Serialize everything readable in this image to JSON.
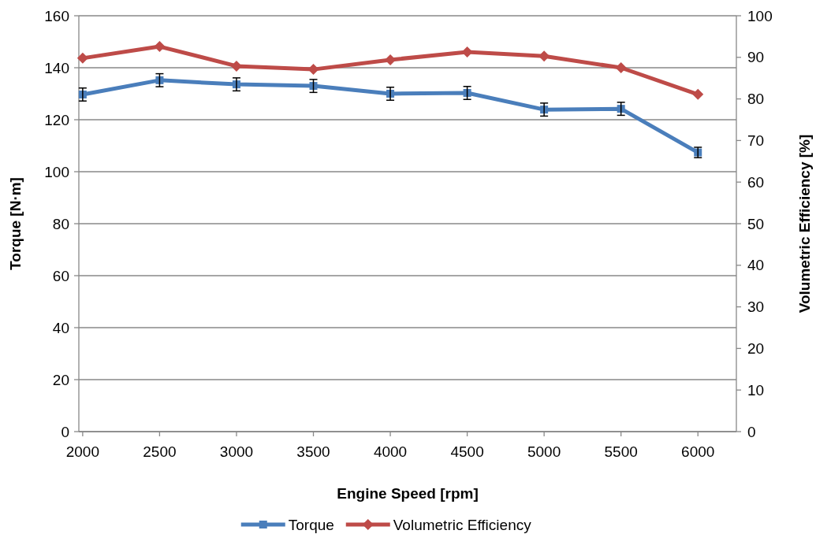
{
  "chart_data": {
    "type": "line",
    "xlabel": "Engine Speed [rpm]",
    "ylabel": "Torque [N·m]",
    "y2label": "Volumetric Efficiency [%]",
    "x": [
      2000,
      2500,
      3000,
      3500,
      4000,
      4500,
      5000,
      5500,
      6000
    ],
    "xlim": [
      1975,
      6250
    ],
    "xticks": [
      2000,
      2500,
      3000,
      3500,
      4000,
      4500,
      5000,
      5500,
      6000
    ],
    "ylim": [
      0,
      160
    ],
    "yticks": [
      0,
      20,
      40,
      60,
      80,
      100,
      120,
      140,
      160
    ],
    "y2lim": [
      0,
      100
    ],
    "y2ticks": [
      0,
      10,
      20,
      30,
      40,
      50,
      60,
      70,
      80,
      90,
      100
    ],
    "grid": "y",
    "legend": "bottom",
    "series": [
      {
        "name": "Torque",
        "color": "#4a7ebb",
        "marker": "square",
        "values": [
          129.7,
          135.2,
          133.6,
          133,
          130,
          130.3,
          123.9,
          124.2,
          107.4
        ],
        "errors": [
          2.5,
          2.5,
          2.5,
          2.5,
          2.5,
          2.5,
          2.5,
          2.5,
          2
        ]
      },
      {
        "name": "Volumetric Efficiency",
        "color": "#be4b48",
        "marker": "diamond",
        "axis": "y2",
        "values": [
          89.8,
          92.6,
          87.9,
          87.1,
          89.4,
          91.3,
          90.3,
          87.5,
          81.1
        ]
      }
    ]
  }
}
